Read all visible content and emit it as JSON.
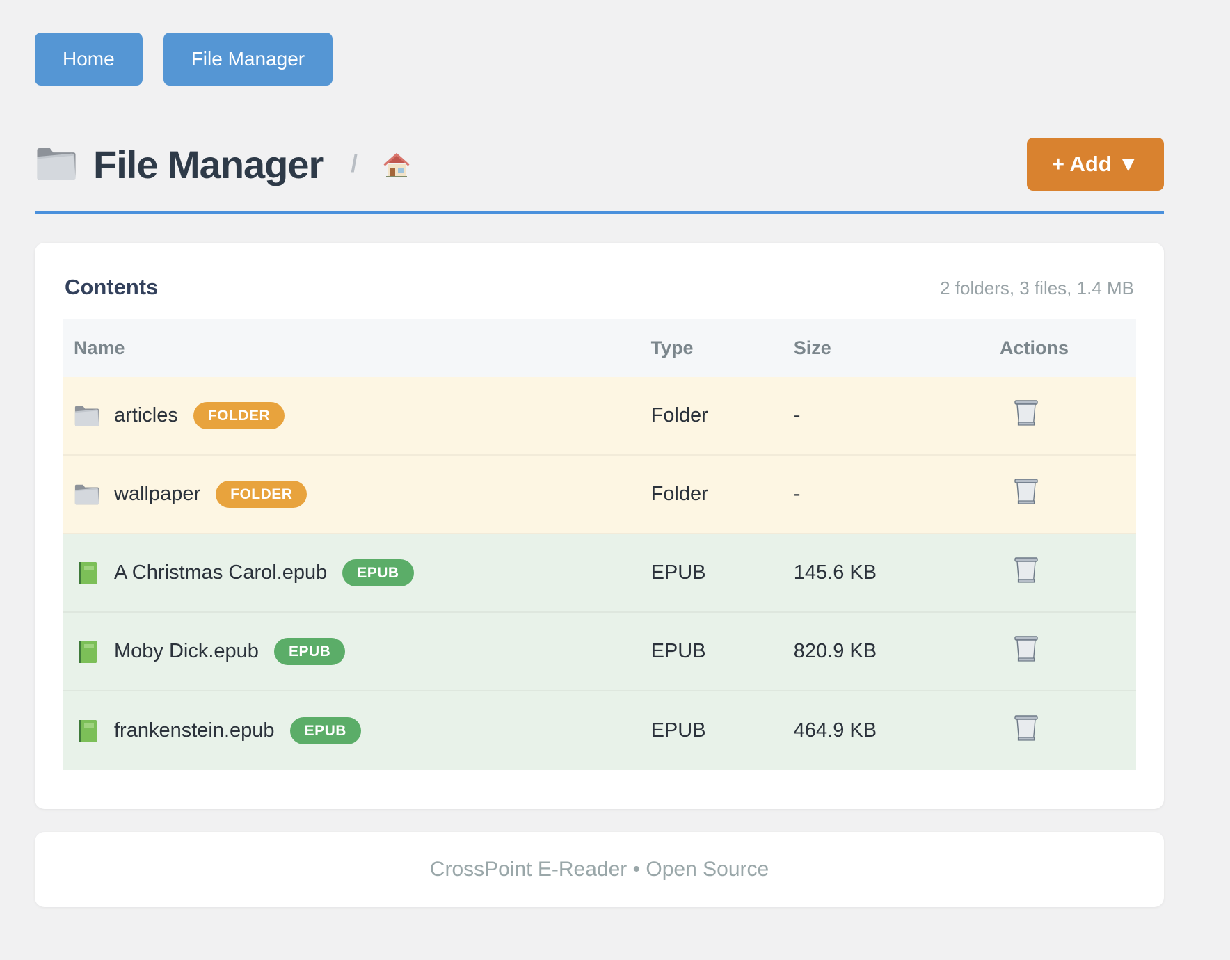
{
  "nav": {
    "home_label": "Home",
    "file_manager_label": "File Manager"
  },
  "header": {
    "title": "File Manager",
    "title_icon": "folder-emoji",
    "breadcrumb_separator": "/",
    "breadcrumb_root_icon": "house-emoji",
    "add_button_label": "+ Add ▼"
  },
  "contents": {
    "title": "Contents",
    "summary": "2 folders, 3 files, 1.4 MB",
    "columns": {
      "name": "Name",
      "type": "Type",
      "size": "Size",
      "actions": "Actions"
    },
    "delete_icon": "wastebasket-emoji",
    "rows": [
      {
        "kind": "folder",
        "icon": "folder-emoji",
        "name": "articles",
        "badge": "FOLDER",
        "type": "Folder",
        "size": "-"
      },
      {
        "kind": "folder",
        "icon": "folder-emoji",
        "name": "wallpaper",
        "badge": "FOLDER",
        "type": "Folder",
        "size": "-"
      },
      {
        "kind": "epub",
        "icon": "green-book-emoji",
        "name": "A Christmas Carol.epub",
        "badge": "EPUB",
        "type": "EPUB",
        "size": "145.6 KB"
      },
      {
        "kind": "epub",
        "icon": "green-book-emoji",
        "name": "Moby Dick.epub",
        "badge": "EPUB",
        "type": "EPUB",
        "size": "820.9 KB"
      },
      {
        "kind": "epub",
        "icon": "green-book-emoji",
        "name": "frankenstein.epub",
        "badge": "EPUB",
        "type": "EPUB",
        "size": "464.9 KB"
      }
    ]
  },
  "footer": {
    "text": "CrossPoint E-Reader • Open Source"
  },
  "colors": {
    "nav_button": "#5596d4",
    "add_button": "#d9822f",
    "header_rule": "#4a90dc",
    "folder_badge": "#e8a33d",
    "epub_badge": "#5bad68",
    "folder_row_bg": "#fdf6e3",
    "epub_row_bg": "#e8f2e9",
    "page_bg": "#f1f1f2"
  }
}
